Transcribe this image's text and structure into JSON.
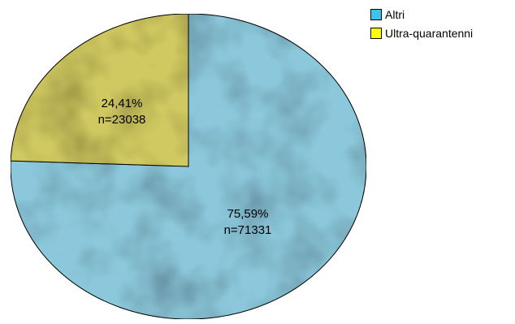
{
  "chart_data": {
    "type": "pie",
    "slices": [
      {
        "name": "Altri",
        "percent_label": "75,59%",
        "n_label": "n=71331",
        "value": 71331,
        "color": "#8cc8dc"
      },
      {
        "name": "Ultra-quarantenni",
        "percent_label": "24,41%",
        "n_label": "n=23038",
        "value": 23038,
        "color": "#d0c860"
      }
    ],
    "legend": {
      "placement": "top-right",
      "items": [
        {
          "label": "Altri",
          "color": "#3ec3f0"
        },
        {
          "label": "Ultra-quarantenni",
          "color": "#ffff00"
        }
      ]
    }
  }
}
